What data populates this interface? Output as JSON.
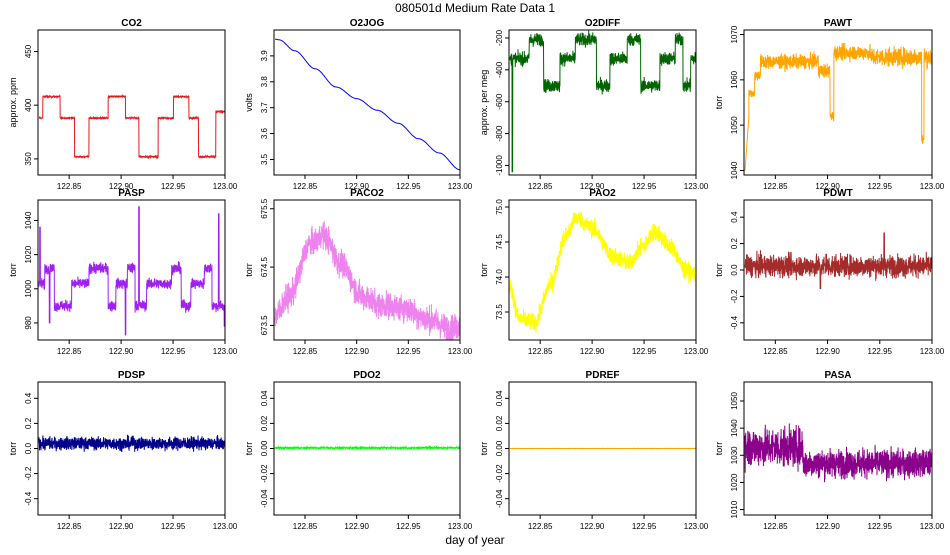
{
  "figure": {
    "title": "080501d   Medium Rate Data 1",
    "xlabel": "day of year"
  },
  "chart_data": [
    {
      "type": "line",
      "title": "CO2",
      "ylabel": "approx. ppm",
      "color": "#e31a1c",
      "xlim": [
        122.82,
        123.0
      ],
      "ylim": [
        335,
        470
      ],
      "xticks": [
        "122.85",
        "122.90",
        "122.95",
        "123.00"
      ],
      "yticks": [
        350,
        400,
        450
      ],
      "ytick_labels": [
        "350",
        "400",
        "450"
      ],
      "shape": "squarewave",
      "base": 388,
      "high": 408,
      "low": 352,
      "events": [
        0.02,
        0.11,
        0.185,
        0.26,
        0.36,
        0.45,
        0.52,
        0.62,
        0.7,
        0.78,
        0.83,
        0.92
      ],
      "end_value": 394
    },
    {
      "type": "line",
      "title": "O2JOG",
      "ylabel": "volts",
      "color": "#0000ff",
      "xlim": [
        122.82,
        123.0
      ],
      "ylim": [
        3.44,
        4.0
      ],
      "xticks": [
        "122.85",
        "122.90",
        "122.95",
        "123.00"
      ],
      "yticks": [
        3.5,
        3.6,
        3.7,
        3.8,
        3.9
      ],
      "ytick_labels": [
        "3.5",
        "3.6",
        "3.7",
        "3.8",
        "3.9"
      ],
      "shape": "smooth",
      "points": [
        [
          122.821,
          3.965
        ],
        [
          122.825,
          3.962
        ],
        [
          122.84,
          3.92
        ],
        [
          122.86,
          3.85
        ],
        [
          122.88,
          3.78
        ],
        [
          122.9,
          3.735
        ],
        [
          122.92,
          3.69
        ],
        [
          122.94,
          3.64
        ],
        [
          122.96,
          3.58
        ],
        [
          122.98,
          3.525
        ],
        [
          123.0,
          3.46
        ]
      ]
    },
    {
      "type": "line",
      "title": "O2DIFF",
      "ylabel": "approx. per meg",
      "color": "#006400",
      "xlim": [
        122.82,
        123.0
      ],
      "ylim": [
        -1060,
        -150
      ],
      "xticks": [
        "122.85",
        "122.90",
        "122.95",
        "123.00"
      ],
      "yticks": [
        -1000,
        -800,
        -600,
        -400,
        -200
      ],
      "ytick_labels": [
        "-1000",
        "-800",
        "-600",
        "-400",
        "-200"
      ],
      "shape": "squarewave_noisy",
      "base": -330,
      "high": -210,
      "low": -500,
      "noise": 40,
      "events": [
        0.1,
        0.175,
        0.26,
        0.34,
        0.45,
        0.52,
        0.61,
        0.68,
        0.78,
        0.86,
        0.9,
        0.94
      ],
      "spike": {
        "x": 0.012,
        "y": -1040
      }
    },
    {
      "type": "line",
      "title": "PAWT",
      "ylabel": "torr",
      "color": "#ffa500",
      "xlim": [
        122.82,
        123.0
      ],
      "ylim": [
        1039,
        1071
      ],
      "xticks": [
        "122.85",
        "122.90",
        "122.95",
        "123.00"
      ],
      "yticks": [
        1040,
        1050,
        1060,
        1070
      ],
      "ytick_labels": [
        "1040",
        "1050",
        "1060",
        "1070"
      ],
      "shape": "pawt"
    },
    {
      "type": "line",
      "title": "PASP",
      "ylabel": "torr",
      "color": "#a020f0",
      "xlim": [
        122.82,
        123.0
      ],
      "ylim": [
        970,
        1052
      ],
      "xticks": [
        "122.85",
        "122.90",
        "122.95",
        "123.00"
      ],
      "yticks": [
        980,
        1000,
        1020,
        1040
      ],
      "ytick_labels": [
        "980",
        "1000",
        "1020",
        "1040"
      ],
      "shape": "squarewave_noisy",
      "base": 1003,
      "high": 1012,
      "low": 990,
      "noise": 3,
      "events": [
        0.03,
        0.08,
        0.17,
        0.26,
        0.36,
        0.4,
        0.46,
        0.5,
        0.56,
        0.69,
        0.74,
        0.79,
        0.86,
        0.9,
        0.97
      ],
      "spikes": [
        {
          "x": 0.005,
          "y": 1036
        },
        {
          "x": 0.055,
          "y": 980
        },
        {
          "x": 0.52,
          "y": 1048
        },
        {
          "x": 0.45,
          "y": 973
        },
        {
          "x": 0.935,
          "y": 1044
        },
        {
          "x": 0.965,
          "y": 978
        }
      ]
    },
    {
      "type": "line",
      "title": "PACO2",
      "ylabel": "torr",
      "color": "#ee82ee",
      "xlim": [
        122.82,
        123.0
      ],
      "ylim": [
        673.25,
        675.65
      ],
      "xticks": [
        "122.85",
        "122.90",
        "122.95",
        "123.00"
      ],
      "yticks": [
        673.5,
        674.5,
        675.5
      ],
      "ytick_labels": [
        "673.5",
        "674.5",
        "675.5"
      ],
      "shape": "noisy_curve",
      "noise": 0.22,
      "points": [
        [
          122.82,
          673.65
        ],
        [
          122.835,
          674.0
        ],
        [
          122.855,
          674.9
        ],
        [
          122.868,
          675.05
        ],
        [
          122.885,
          674.55
        ],
        [
          122.905,
          674.0
        ],
        [
          122.925,
          673.85
        ],
        [
          122.945,
          673.8
        ],
        [
          122.97,
          673.6
        ],
        [
          122.99,
          673.45
        ],
        [
          123.005,
          673.5
        ]
      ]
    },
    {
      "type": "line",
      "title": "PAO2",
      "ylabel": "torr",
      "color": "#ffff00",
      "xlim": [
        122.82,
        123.0
      ],
      "ylim": [
        73.1,
        75.1
      ],
      "xticks": [
        "122.85",
        "122.90",
        "122.95",
        "123.00"
      ],
      "yticks": [
        73.5,
        74.0,
        74.5,
        75.0
      ],
      "ytick_labels": [
        "73.5",
        "74.0",
        "74.5",
        "75.0"
      ],
      "shape": "noisy_curve",
      "noise": 0.12,
      "points": [
        [
          122.82,
          73.9
        ],
        [
          122.83,
          73.4
        ],
        [
          122.845,
          73.35
        ],
        [
          122.86,
          73.9
        ],
        [
          122.875,
          74.6
        ],
        [
          122.885,
          74.85
        ],
        [
          122.9,
          74.7
        ],
        [
          122.92,
          74.3
        ],
        [
          122.935,
          74.2
        ],
        [
          122.95,
          74.45
        ],
        [
          122.96,
          74.65
        ],
        [
          122.975,
          74.45
        ],
        [
          122.99,
          74.1
        ],
        [
          123.005,
          74.0
        ]
      ]
    },
    {
      "type": "line",
      "title": "PDWT",
      "ylabel": "torr",
      "color": "#a52a2a",
      "xlim": [
        122.82,
        123.0
      ],
      "ylim": [
        -0.53,
        0.53
      ],
      "xticks": [
        "122.85",
        "122.90",
        "122.95",
        "123.00"
      ],
      "yticks": [
        -0.4,
        -0.2,
        0.0,
        0.2,
        0.4
      ],
      "ytick_labels": [
        "-0.4",
        "-0.2",
        "0.0",
        "0.2",
        "0.4"
      ],
      "shape": "noise",
      "center": 0.03,
      "noise": 0.08,
      "spikes": [
        {
          "x": 0.39,
          "y": -0.14
        },
        {
          "x": 0.42,
          "y": 0.12
        },
        {
          "x": 0.72,
          "y": 0.28
        }
      ]
    },
    {
      "type": "line",
      "title": "PDSP",
      "ylabel": "torr",
      "color": "#00008b",
      "xlim": [
        122.82,
        123.0
      ],
      "ylim": [
        -0.53,
        0.53
      ],
      "xticks": [
        "122.85",
        "122.90",
        "122.95",
        "123.00"
      ],
      "yticks": [
        -0.4,
        -0.2,
        0.0,
        0.2,
        0.4
      ],
      "ytick_labels": [
        "-0.4",
        "-0.2",
        "0.0",
        "0.2",
        "0.4"
      ],
      "shape": "noise",
      "center": 0.04,
      "noise": 0.05,
      "spikes": [
        {
          "x": 0.995,
          "y": -0.08
        }
      ]
    },
    {
      "type": "line",
      "title": "PDO2",
      "ylabel": "torr",
      "color": "#00ff00",
      "xlim": [
        122.82,
        123.0
      ],
      "ylim": [
        -0.053,
        0.053
      ],
      "xticks": [
        "122.85",
        "122.90",
        "122.95",
        "123.00"
      ],
      "yticks": [
        -0.04,
        -0.02,
        0.0,
        0.02,
        0.04
      ],
      "ytick_labels": [
        "-0.04",
        "-0.02",
        "0.00",
        "0.02",
        "0.04"
      ],
      "shape": "noise",
      "center": 0.0005,
      "noise": 0.0006
    },
    {
      "type": "line",
      "title": "PDREF",
      "ylabel": "torr",
      "color": "#ffa500",
      "xlim": [
        122.82,
        123.0
      ],
      "ylim": [
        -0.053,
        0.053
      ],
      "xticks": [
        "122.85",
        "122.90",
        "122.95",
        "123.00"
      ],
      "yticks": [
        -0.04,
        -0.02,
        0.0,
        0.02,
        0.04
      ],
      "ytick_labels": [
        "-0.04",
        "-0.02",
        "0.00",
        "0.02",
        "0.04"
      ],
      "shape": "noise",
      "center": 0.0,
      "noise": 5e-05
    },
    {
      "type": "line",
      "title": "PASA",
      "ylabel": "torr",
      "color": "#8b008b",
      "xlim": [
        122.82,
        123.0
      ],
      "ylim": [
        1008,
        1057
      ],
      "xticks": [
        "122.85",
        "122.90",
        "122.95",
        "123.00"
      ],
      "yticks": [
        1010,
        1020,
        1030,
        1040,
        1050
      ],
      "ytick_labels": [
        "1010",
        "1020",
        "1030",
        "1040",
        "1050"
      ],
      "shape": "pasa"
    }
  ]
}
